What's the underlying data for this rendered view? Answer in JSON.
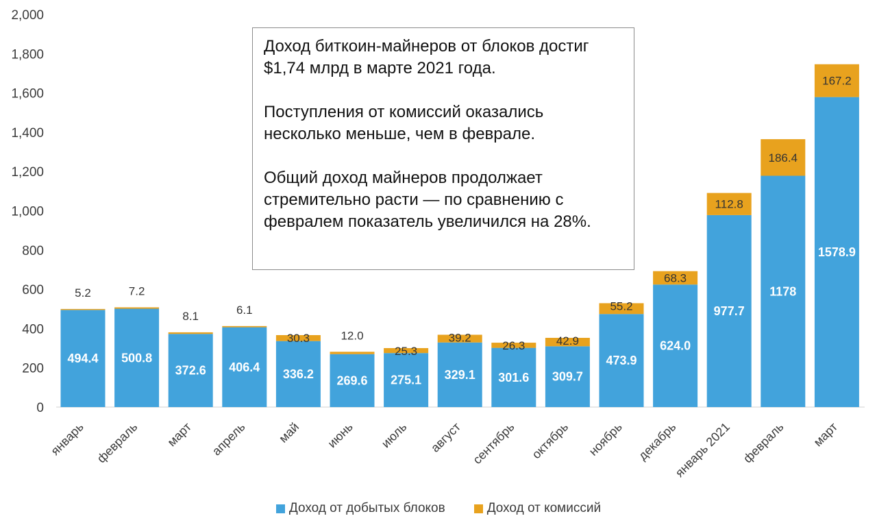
{
  "annotation": {
    "para1": "Доход биткоин-майнеров от блоков достиг $1,74 млрд в марте 2021 года.",
    "para2": "Поступления от комиссий оказались несколько меньше, чем в феврале.",
    "para3": "Общий доход майнеров продолжает стремительно расти — по сравнению с февралем показатель увеличился на 28%."
  },
  "colors": {
    "blocks": "#42a3dc",
    "fees": "#e8a21e"
  },
  "chart_data": {
    "type": "bar",
    "stacked": true,
    "categories": [
      "январь",
      "февраль",
      "март",
      "апрель",
      "май",
      "июнь",
      "июль",
      "август",
      "сентябрь",
      "октябрь",
      "ноябрь",
      "декабрь",
      "январь 2021",
      "февраль",
      "март"
    ],
    "series": [
      {
        "name": "Доход от добытых блоков",
        "values": [
          494.4,
          500.8,
          372.6,
          406.4,
          336.2,
          269.6,
          275.1,
          329.1,
          301.6,
          309.7,
          473.9,
          624.0,
          977.7,
          1178,
          1578.9
        ]
      },
      {
        "name": "Доход от комиссий",
        "values": [
          5.2,
          7.2,
          8.1,
          6.1,
          30.3,
          12.0,
          25.3,
          39.2,
          26.3,
          42.9,
          55.2,
          68.3,
          112.8,
          186.4,
          167.2
        ]
      }
    ],
    "block_labels": [
      "494.4",
      "500.8",
      "372.6",
      "406.4",
      "336.2",
      "269.6",
      "275.1",
      "329.1",
      "301.6",
      "309.7",
      "473.9",
      "624.0",
      "977.7",
      "1178",
      "1578.9"
    ],
    "fee_labels": [
      "5.2",
      "7.2",
      "8.1",
      "6.1",
      "30.3",
      "12.0",
      "25.3",
      "39.2",
      "26.3",
      "42.9",
      "55.2",
      "68.3",
      "112.8",
      "186.4",
      "167.2"
    ],
    "yticks": [
      "0",
      "200",
      "400",
      "600",
      "800",
      "1,000",
      "1,200",
      "1,400",
      "1,600",
      "1,800",
      "2,000"
    ],
    "ylim": [
      0,
      2000
    ],
    "grid": false,
    "legend_position": "bottom"
  }
}
